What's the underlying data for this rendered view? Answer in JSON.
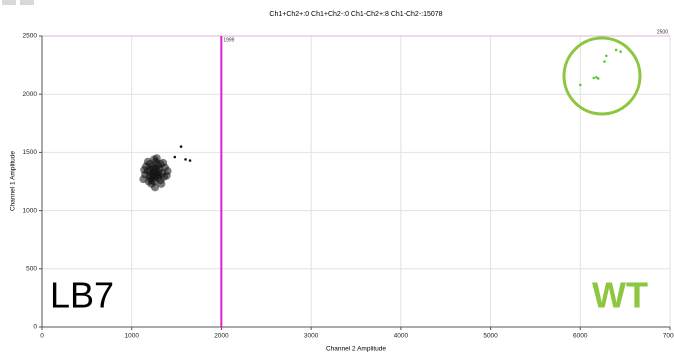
{
  "chart_data": {
    "type": "scatter",
    "title": "Ch1+Ch2+:0 Ch1+Ch2-:0 Ch1-Ch2+:8 Ch1-Ch2-:15078",
    "x_label": "Channel 2 Amplitude",
    "y_label": "Channel 1 Amplitude",
    "xlim": [
      0,
      7000
    ],
    "ylim": [
      0,
      2500
    ],
    "xticks": [
      0,
      1000,
      2000,
      3000,
      4000,
      5000,
      6000,
      7000
    ],
    "yticks": [
      0,
      500,
      1000,
      1500,
      2000,
      2500
    ],
    "grid": true,
    "thresholds": [
      {
        "axis": "x",
        "value": 1999,
        "color": "#e020d0"
      },
      {
        "axis": "y",
        "value": 2500,
        "color": "#e020d0"
      }
    ],
    "annotations": [
      {
        "text": "LB7",
        "color": "#000000"
      },
      {
        "text": "WT",
        "color": "#8dc63f"
      }
    ],
    "series": [
      {
        "color": "#111111",
        "x": [
          1260,
          1200,
          1310,
          1230,
          1290,
          1180,
          1340,
          1250,
          1270,
          1150,
          1370,
          1220,
          1320,
          1200,
          1280,
          1130,
          1390,
          1240,
          1300,
          1210,
          1160,
          1350,
          1260,
          1190,
          1330,
          1270,
          1230,
          1290,
          1140,
          1360,
          1250,
          1210,
          1300,
          1180,
          1400,
          1240,
          1280,
          1220,
          1320,
          1260,
          1550,
          1600,
          1650,
          1480
        ],
        "y": [
          1330,
          1300,
          1360,
          1380,
          1280,
          1340,
          1320,
          1250,
          1420,
          1310,
          1370,
          1230,
          1260,
          1400,
          1450,
          1270,
          1300,
          1300,
          1330,
          1350,
          1380,
          1410,
          1200,
          1250,
          1230,
          1360,
          1320,
          1390,
          1350,
          1290,
          1440,
          1280,
          1300,
          1420,
          1340,
          1360,
          1310,
          1260,
          1400,
          1290,
          1550,
          1440,
          1430,
          1460
        ]
      },
      {
        "color": "#5ccc3a",
        "x": [
          6000,
          6150,
          6200,
          6180,
          6270,
          6290,
          6400,
          6450
        ],
        "y": [
          2080,
          2140,
          2135,
          2145,
          2280,
          2330,
          2380,
          2365
        ]
      }
    ]
  }
}
